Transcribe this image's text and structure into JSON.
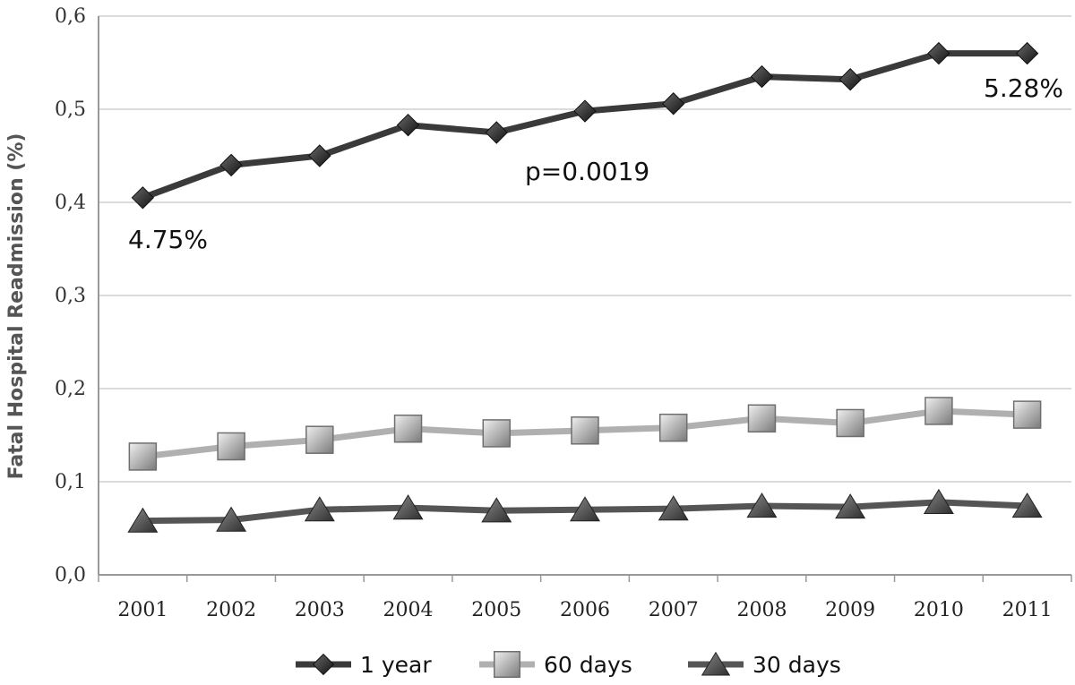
{
  "chart_data": {
    "type": "line",
    "title": "",
    "xlabel": "",
    "ylabel": "Fatal Hospital Readmission (%)",
    "categories": [
      "2001",
      "2002",
      "2003",
      "2004",
      "2005",
      "2006",
      "2007",
      "2008",
      "2009",
      "2010",
      "2011"
    ],
    "yticks": [
      "0,0",
      "0,1",
      "0,2",
      "0,3",
      "0,4",
      "0,5",
      "0,6"
    ],
    "ylim": [
      0,
      0.6
    ],
    "grid": true,
    "legend_position": "bottom",
    "series": [
      {
        "name": "1 year",
        "marker": "diamond",
        "color": "#3a3a3a",
        "values": [
          0.405,
          0.44,
          0.45,
          0.483,
          0.475,
          0.498,
          0.506,
          0.535,
          0.532,
          0.56,
          0.56
        ]
      },
      {
        "name": "60 days",
        "marker": "square",
        "color": "#b0b0b0",
        "values": [
          0.127,
          0.138,
          0.145,
          0.157,
          0.152,
          0.155,
          0.158,
          0.168,
          0.163,
          0.176,
          0.172
        ]
      },
      {
        "name": "30 days",
        "marker": "triangle",
        "color": "#555555",
        "values": [
          0.058,
          0.059,
          0.07,
          0.072,
          0.069,
          0.07,
          0.071,
          0.074,
          0.073,
          0.078,
          0.074
        ]
      }
    ],
    "annotations": [
      "4.75%",
      "p=0.0019",
      "5.28%"
    ]
  }
}
